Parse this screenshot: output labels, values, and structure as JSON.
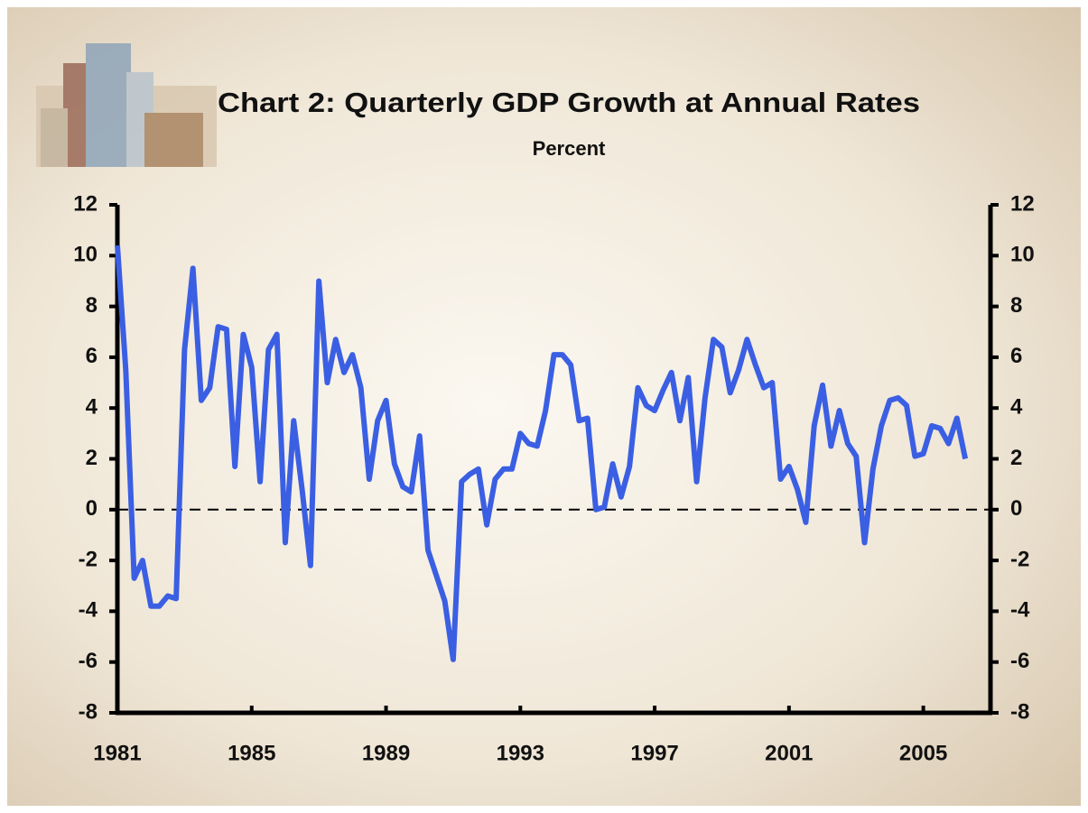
{
  "chart_data": {
    "type": "line",
    "title": "Chart 2: Quarterly GDP Growth at Annual Rates",
    "subtitle": "Percent",
    "x": [
      1981,
      1981.25,
      1981.5,
      1981.75,
      1982,
      1982.25,
      1982.5,
      1982.75,
      1983,
      1983.25,
      1983.5,
      1983.75,
      1984,
      1984.25,
      1984.5,
      1984.75,
      1985,
      1985.25,
      1985.5,
      1985.75,
      1986,
      1986.25,
      1986.5,
      1986.75,
      1987,
      1987.25,
      1987.5,
      1987.75,
      1988,
      1988.25,
      1988.5,
      1988.75,
      1989,
      1989.25,
      1989.5,
      1989.75,
      1990,
      1990.25,
      1990.5,
      1990.75,
      1991,
      1991.25,
      1991.5,
      1991.75,
      1992,
      1992.25,
      1992.5,
      1992.75,
      1993,
      1993.25,
      1993.5,
      1993.75,
      1994,
      1994.25,
      1994.5,
      1994.75,
      1995,
      1995.25,
      1995.5,
      1995.75,
      1996,
      1996.25,
      1996.5,
      1996.75,
      1997,
      1997.25,
      1997.5,
      1997.75,
      1998,
      1998.25,
      1998.5,
      1998.75,
      1999,
      1999.25,
      1999.5,
      1999.75,
      2000,
      2000.25,
      2000.5,
      2000.75,
      2001,
      2001.25,
      2001.5,
      2001.75,
      2002,
      2002.25,
      2002.5,
      2002.75,
      2003,
      2003.25,
      2003.5,
      2003.75,
      2004,
      2004.25,
      2004.5,
      2004.75,
      2005,
      2005.25,
      2005.5,
      2005.75,
      2006,
      2006.25
    ],
    "values": [
      10.4,
      5.5,
      -2.7,
      -2.0,
      -3.8,
      -3.8,
      -3.4,
      -3.5,
      6.3,
      9.5,
      4.3,
      4.8,
      7.2,
      7.1,
      1.7,
      6.9,
      5.6,
      1.1,
      6.3,
      6.9,
      -1.3,
      3.5,
      0.8,
      -2.2,
      9.0,
      5.0,
      6.7,
      5.4,
      6.1,
      4.8,
      1.2,
      3.5,
      4.3,
      1.8,
      0.9,
      0.7,
      2.9,
      -1.6,
      -2.6,
      -3.6,
      -5.9,
      1.1,
      1.4,
      1.6,
      -0.6,
      1.2,
      1.6,
      1.6,
      3.0,
      2.6,
      2.5,
      3.9,
      6.1,
      6.1,
      5.7,
      3.5,
      3.6,
      0.0,
      0.1,
      1.8,
      0.5,
      1.7,
      4.8,
      4.1,
      3.9,
      4.7,
      5.4,
      3.5,
      5.2,
      1.1,
      4.4,
      6.7,
      6.4,
      4.6,
      5.5,
      6.7,
      5.7,
      4.8,
      5.0,
      1.2,
      1.7,
      0.8,
      -0.5,
      3.3,
      4.9,
      2.5,
      3.9,
      2.6,
      2.1,
      -1.3,
      1.6,
      3.3,
      4.3,
      4.4,
      4.1,
      2.1,
      2.2,
      3.3,
      3.2,
      2.6,
      3.6,
      2.0
    ],
    "color": "#3b5fe3",
    "xlim": [
      1981,
      2007
    ],
    "xticks": [
      1981,
      1985,
      1989,
      1993,
      1997,
      2001,
      2005
    ],
    "ylim": [
      -8,
      12
    ],
    "yticks": [
      -8,
      -6,
      -4,
      -2,
      0,
      2,
      4,
      6,
      8,
      10,
      12
    ],
    "reference_line": 0,
    "right_axis": true
  }
}
